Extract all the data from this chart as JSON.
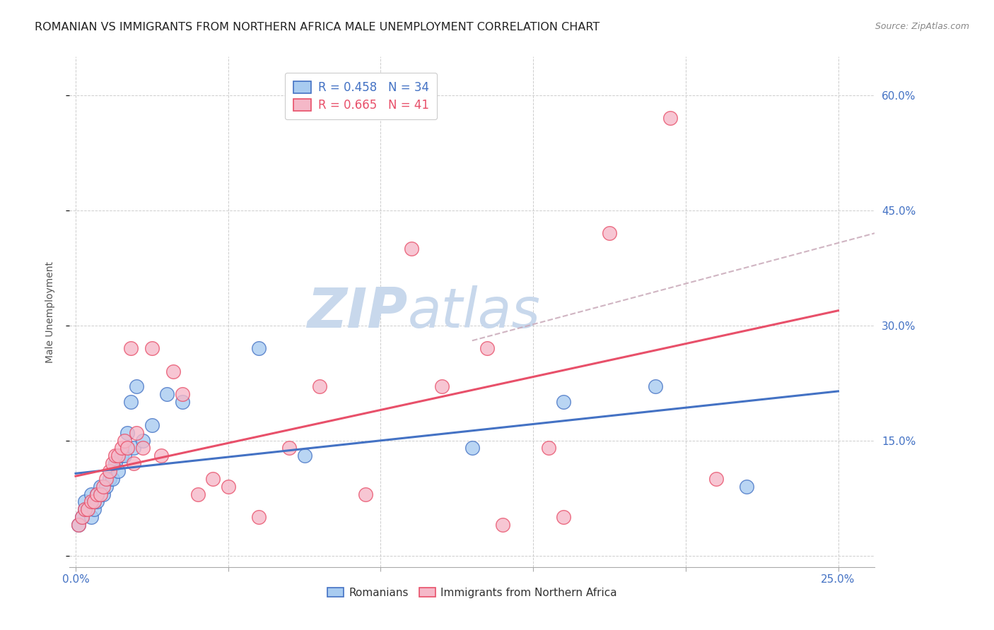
{
  "title": "ROMANIAN VS IMMIGRANTS FROM NORTHERN AFRICA MALE UNEMPLOYMENT CORRELATION CHART",
  "source": "Source: ZipAtlas.com",
  "ylabel": "Male Unemployment",
  "x_ticks": [
    0.0,
    0.05,
    0.1,
    0.15,
    0.2,
    0.25
  ],
  "x_tick_labels": [
    "0.0%",
    "",
    "",
    "",
    "",
    "25.0%"
  ],
  "y_ticks": [
    0.0,
    0.15,
    0.3,
    0.45,
    0.6
  ],
  "y_tick_labels_right": [
    "",
    "15.0%",
    "30.0%",
    "45.0%",
    "60.0%"
  ],
  "xlim": [
    -0.002,
    0.262
  ],
  "ylim": [
    -0.015,
    0.65
  ],
  "title_fontsize": 11.5,
  "axis_label_fontsize": 10,
  "tick_fontsize": 11,
  "legend_R1": "R = 0.458",
  "legend_N1": "N = 34",
  "legend_R2": "R = 0.665",
  "legend_N2": "N = 41",
  "color_romanian": "#A8CBF0",
  "color_nafr": "#F5B8C8",
  "color_romanian_line": "#4472C4",
  "color_nafr_line": "#E8506A",
  "color_dashed_line": "#C8A8B8",
  "background_color": "#FFFFFF",
  "watermark_zip": "ZIP",
  "watermark_atlas": "atlas",
  "watermark_color": "#C8D8EC",
  "romanian_x": [
    0.001,
    0.002,
    0.003,
    0.003,
    0.004,
    0.005,
    0.005,
    0.006,
    0.006,
    0.007,
    0.007,
    0.008,
    0.009,
    0.01,
    0.011,
    0.012,
    0.013,
    0.014,
    0.015,
    0.016,
    0.017,
    0.018,
    0.019,
    0.02,
    0.022,
    0.025,
    0.03,
    0.035,
    0.06,
    0.075,
    0.13,
    0.16,
    0.19,
    0.22
  ],
  "romanian_y": [
    0.04,
    0.05,
    0.06,
    0.07,
    0.06,
    0.05,
    0.08,
    0.06,
    0.07,
    0.07,
    0.08,
    0.09,
    0.08,
    0.09,
    0.1,
    0.1,
    0.12,
    0.11,
    0.13,
    0.13,
    0.16,
    0.2,
    0.14,
    0.22,
    0.15,
    0.17,
    0.21,
    0.2,
    0.27,
    0.13,
    0.14,
    0.2,
    0.22,
    0.09
  ],
  "nafr_x": [
    0.001,
    0.002,
    0.003,
    0.004,
    0.005,
    0.006,
    0.007,
    0.008,
    0.009,
    0.01,
    0.011,
    0.012,
    0.013,
    0.014,
    0.015,
    0.016,
    0.017,
    0.018,
    0.019,
    0.02,
    0.022,
    0.025,
    0.028,
    0.032,
    0.035,
    0.04,
    0.045,
    0.05,
    0.06,
    0.07,
    0.08,
    0.095,
    0.11,
    0.12,
    0.135,
    0.14,
    0.155,
    0.16,
    0.175,
    0.195,
    0.21
  ],
  "nafr_y": [
    0.04,
    0.05,
    0.06,
    0.06,
    0.07,
    0.07,
    0.08,
    0.08,
    0.09,
    0.1,
    0.11,
    0.12,
    0.13,
    0.13,
    0.14,
    0.15,
    0.14,
    0.27,
    0.12,
    0.16,
    0.14,
    0.27,
    0.13,
    0.24,
    0.21,
    0.08,
    0.1,
    0.09,
    0.05,
    0.14,
    0.22,
    0.08,
    0.4,
    0.22,
    0.27,
    0.04,
    0.14,
    0.05,
    0.42,
    0.57,
    0.1
  ]
}
